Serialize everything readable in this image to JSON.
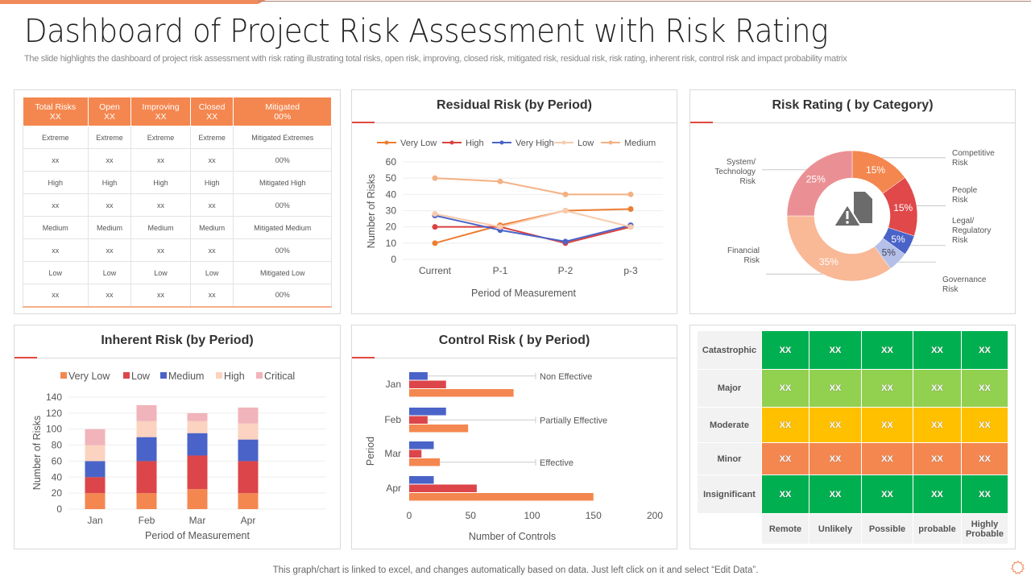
{
  "header": {
    "title": "Dashboard of Project Risk Assessment with Risk Rating",
    "subtitle": "The slide highlights the dashboard of project risk assessment with risk rating illustrating total risks, open risk, improving, closed risk, mitigated risk, residual risk, risk rating, inherent risk, control risk and impact probability matrix"
  },
  "summary_table": {
    "headers": [
      [
        "Total Risks",
        "XX"
      ],
      [
        "Open",
        "XX"
      ],
      [
        "Improving",
        "XX"
      ],
      [
        "Closed",
        "XX"
      ],
      [
        "Mitigated",
        "00%"
      ]
    ],
    "rows": [
      [
        "Extreme",
        "Extreme",
        "Extreme",
        "Extreme",
        "Mitigated Extremes"
      ],
      [
        "xx",
        "xx",
        "xx",
        "xx",
        "00%"
      ],
      [
        "High",
        "High",
        "High",
        "High",
        "Mitigated High"
      ],
      [
        "xx",
        "xx",
        "xx",
        "xx",
        "00%"
      ],
      [
        "Medium",
        "Medium",
        "Medium",
        "Medium",
        "Mitigated Medium"
      ],
      [
        "xx",
        "xx",
        "xx",
        "xx",
        "00%"
      ],
      [
        "Low",
        "Low",
        "Low",
        "Low",
        "Mitigated Low"
      ],
      [
        "xx",
        "xx",
        "xx",
        "xx",
        "00%"
      ]
    ],
    "header_color": "#F4874F"
  },
  "panels": {
    "residual": "Residual Risk (by Period)",
    "rating": "Risk Rating ( by Category)",
    "inherent": "Inherent Risk   (by Period)",
    "control": "Control Risk ( by Period)"
  },
  "chart_data": [
    {
      "type": "line",
      "title": "Residual Risk (by Period)",
      "categories": [
        "Current",
        "P-1",
        "P-2",
        "p-3"
      ],
      "xlabel": "Period of Measurement",
      "ylabel": "Number of Risks",
      "ylim": [
        0,
        60
      ],
      "yticks": [
        0,
        10,
        20,
        30,
        40,
        50,
        60
      ],
      "grid": true,
      "legend": "top",
      "series": [
        {
          "name": "Very Low",
          "color": "#ED7D31",
          "values": [
            10,
            21,
            30,
            31
          ]
        },
        {
          "name": "High",
          "color": "#D9423F",
          "values": [
            20,
            20,
            10,
            20
          ]
        },
        {
          "name": "Very High",
          "color": "#4A63C8",
          "values": [
            27,
            18,
            11,
            21
          ]
        },
        {
          "name": "Low",
          "color": "#F8CBAD",
          "values": [
            28,
            20,
            30,
            20
          ]
        },
        {
          "name": "Medium",
          "color": "#F4B183",
          "values": [
            50,
            48,
            40,
            40
          ]
        }
      ]
    },
    {
      "type": "pie",
      "title": "Risk Rating ( by Category)",
      "donut": true,
      "slices": [
        {
          "name": "Competitive Risk",
          "value": 15,
          "label": "15%",
          "color": "#F4874F"
        },
        {
          "name": "People Risk",
          "value": 15,
          "label": "15%",
          "color": "#E0484A"
        },
        {
          "name": "Legal/ Regulatory Risk",
          "value": 5,
          "label": "5%",
          "color": "#4A63C8"
        },
        {
          "name": "Governance Risk",
          "value": 5,
          "label": "5%",
          "color": "#B4C0E8"
        },
        {
          "name": "Financial Risk",
          "value": 35,
          "label": "35%",
          "color": "#F9B896"
        },
        {
          "name": "System/ Technology Risk",
          "value": 25,
          "label": "25%",
          "color": "#EA9095"
        }
      ],
      "center_icon": "document-warning-icon"
    },
    {
      "type": "bar",
      "stacked": true,
      "title": "Inherent Risk   (by Period)",
      "categories": [
        "Jan",
        "Feb",
        "Mar",
        "Apr"
      ],
      "xlabel": "Period of Measurement",
      "ylabel": "Number of Risks",
      "ylim": [
        0,
        140
      ],
      "yticks": [
        0,
        20,
        40,
        60,
        80,
        100,
        120,
        140
      ],
      "grid": true,
      "legend": "top",
      "series": [
        {
          "name": "Very Low",
          "color": "#F4874F",
          "values": [
            20,
            20,
            25,
            20
          ]
        },
        {
          "name": "Low",
          "color": "#DC4549",
          "values": [
            20,
            40,
            42,
            40
          ]
        },
        {
          "name": "Medium",
          "color": "#4A63C8",
          "values": [
            20,
            30,
            28,
            27
          ]
        },
        {
          "name": "High",
          "color": "#FBD3C0",
          "values": [
            20,
            20,
            15,
            20
          ]
        },
        {
          "name": "Critical",
          "color": "#F0B4BA",
          "values": [
            20,
            20,
            10,
            20
          ]
        }
      ]
    },
    {
      "type": "bar",
      "orientation": "horizontal",
      "title": "Control Risk ( by Period)",
      "categories": [
        "Jan",
        "Feb",
        "Mar",
        "Apr"
      ],
      "xlabel": "Number of  Controls",
      "ylabel": "Period",
      "xlim": [
        0,
        200
      ],
      "xticks": [
        0,
        50,
        100,
        150,
        200
      ],
      "series": [
        {
          "name": "Non Effective",
          "color": "#4A63C8",
          "values": [
            15,
            30,
            20,
            20
          ]
        },
        {
          "name": "Partially Effective",
          "color": "#DC4549",
          "values": [
            30,
            15,
            10,
            55
          ]
        },
        {
          "name": "Effective",
          "color": "#F4874F",
          "values": [
            85,
            48,
            25,
            150
          ]
        }
      ]
    }
  ],
  "matrix": {
    "rows": [
      {
        "label": "Catastrophic",
        "color": "#00B050",
        "cells": [
          "XX",
          "XX",
          "XX",
          "XX",
          "XX"
        ]
      },
      {
        "label": "Major",
        "color": "#92D050",
        "cells": [
          "XX",
          "XX",
          "XX",
          "XX",
          "XX"
        ]
      },
      {
        "label": "Moderate",
        "color": "#FFC000",
        "cells": [
          "XX",
          "XX",
          "XX",
          "XX",
          "XX"
        ]
      },
      {
        "label": "Minor",
        "color": "#F4874F",
        "cells": [
          "XX",
          "XX",
          "XX",
          "XX",
          "XX"
        ]
      },
      {
        "label": "Insignificant",
        "color": "#00B050",
        "cells": [
          "XX",
          "XX",
          "XX",
          "XX",
          "XX"
        ]
      }
    ],
    "columns": [
      "Remote",
      "Unlikely",
      "Possible",
      "probable",
      "Highly Probable"
    ]
  },
  "footer": "This graph/chart is linked to excel,  and changes automatically based on data. Just left click on it and select “Edit Data”.",
  "icons": {
    "corner": "gear-icon"
  }
}
